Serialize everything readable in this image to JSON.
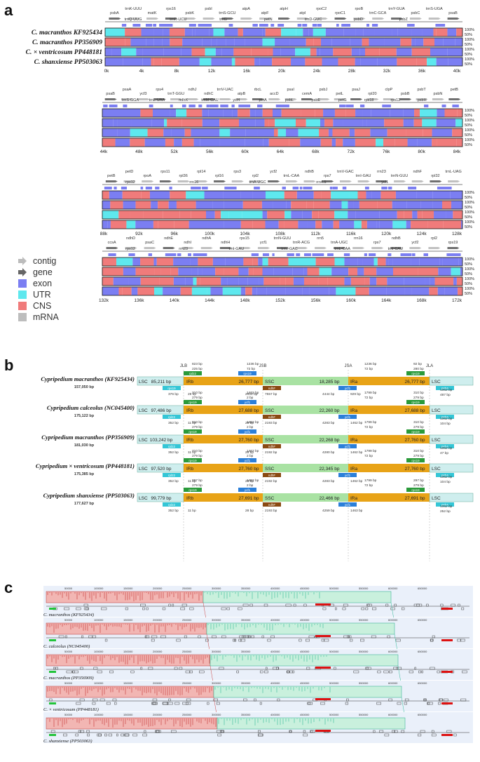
{
  "panel_labels": {
    "a": "a",
    "b": "b",
    "c": "c"
  },
  "colors": {
    "exon": "#7b7ef2",
    "utr": "#5ee8ee",
    "cns": "#f07b7b",
    "mrna": "#bdbdbd",
    "contig": "#c0c0c0",
    "gene": "#707070",
    "lsc": "#cfeeee",
    "irb": "#e8a317",
    "ssc": "#a9e2a3",
    "ira": "#e8a317"
  },
  "panel_a": {
    "sequence_labels": [
      "C. macranthos KF925434",
      "C. macranthos PP356909",
      "C. × ventricosum PP448181",
      "C. shanxiense PP503063"
    ],
    "pct_labels": [
      "100%",
      "50%"
    ],
    "legend": [
      {
        "label": "contig",
        "shape": "light-arrow-icon"
      },
      {
        "label": "gene",
        "shape": "dark-arrow-icon"
      },
      {
        "label": "exon",
        "shape": "exon-square"
      },
      {
        "label": "UTR",
        "shape": "utr-square"
      },
      {
        "label": "CNS",
        "shape": "cns-square"
      },
      {
        "label": "mRNA",
        "shape": "mrna-square"
      }
    ],
    "rows": [
      {
        "genes_top": [
          "psbA",
          "trnK-UUU",
          "matK",
          "rps16",
          "psbK",
          "psbI",
          "trnS-GCU",
          "atpA",
          "atpF",
          "atpH",
          "atpI",
          "rpoC2",
          "rpoC1",
          "rpoB",
          "trnC-GCA",
          "trnY-GUA",
          "psbC",
          "trnS-UGA",
          "psaB"
        ],
        "genes_bottom": [
          "trnQ-UUG",
          "trnR-UCU",
          "trnG",
          "petN",
          "trnD-GUC",
          "psbD",
          "psbZ"
        ],
        "ticks": [
          "0k",
          "4k",
          "8k",
          "12k",
          "16k",
          "20k",
          "24k",
          "28k",
          "32k",
          "36k",
          "40k"
        ]
      },
      {
        "genes_top": [
          "psaB",
          "psaA",
          "ycf3",
          "rps4",
          "trnT-GGU",
          "ndhJ",
          "ndhC",
          "trnV-UAC",
          "atpB",
          "rbcL",
          "accD",
          "psaI",
          "cemA",
          "psbJ",
          "petL",
          "psaJ",
          "rpl20",
          "clpP",
          "psbB",
          "psbT",
          "psbN",
          "petB"
        ],
        "genes_bottom": [
          "trnS-GGA",
          "trnL-UAA",
          "ndhK",
          "trnM-CAU",
          "ycf4",
          "petA",
          "psbL",
          "psbE",
          "petG",
          "rps18",
          "rps12",
          "psbH"
        ],
        "ticks": [
          "44k",
          "48k",
          "52k",
          "56k",
          "60k",
          "64k",
          "68k",
          "72k",
          "76k",
          "80k",
          "84k"
        ]
      },
      {
        "genes_top": [
          "petB",
          "petD",
          "rpoA",
          "rps11",
          "rpl36",
          "rpl14",
          "rpl16",
          "rps3",
          "rpl2",
          "ycf2",
          "trnL-CAA",
          "ndhB",
          "rps7",
          "trnV-GAC",
          "trnI-GAU",
          "rrn23",
          "trnN-GUU",
          "ndhF",
          "rpl32",
          "trnL-UAG"
        ],
        "genes_bottom": [
          "rps12",
          "rrn16",
          "trnA-UGC",
          "rrn4.5",
          "ycf1"
        ],
        "ticks": [
          "88k",
          "92k",
          "96k",
          "100k",
          "104k",
          "108k",
          "112k",
          "116k",
          "120k",
          "124k",
          "128k"
        ]
      },
      {
        "genes_top": [
          "ccsA",
          "ndhD",
          "psaC",
          "ndhE",
          "ndhI",
          "ndhA",
          "ndhH",
          "rps15",
          "ycf1",
          "trnN-GUU",
          "trnR-ACG",
          "rrn5",
          "trnA-UGC",
          "rrn16",
          "rps7",
          "ndhB",
          "ycf2",
          "rpl2",
          "rps19"
        ],
        "genes_bottom": [
          "rps12",
          "rrn23",
          "trnI-GAU",
          "trnV-GAC",
          "trnL-CAA",
          "trnI-CAU"
        ],
        "ticks": [
          "132k",
          "136k",
          "140k",
          "144k",
          "148k",
          "152k",
          "156k",
          "160k",
          "164k",
          "168k",
          "172k"
        ]
      }
    ]
  },
  "panel_b": {
    "junction_headers": [
      "JLB",
      "JSB",
      "JSA",
      "JLA"
    ],
    "region_labels": {
      "lsc": "LSC",
      "irb": "IRb",
      "ssc": "SSC",
      "ira": "IRa"
    },
    "genomes": [
      {
        "name": "Cypripedium macranthos",
        "acc": "(KF925434)",
        "total": "157,050 bp",
        "lsc": "85,211 bp",
        "irb": "26,777 bp",
        "ssc": "18,285 bp",
        "ira": "26,777 bp",
        "genes": [
          "rps19",
          "rpl22",
          "rps19",
          "ndhF",
          "ycf1",
          "rps19",
          "psbA"
        ],
        "notes": [
          "823 bp",
          "225 bp",
          "1236 bp",
          "72 bp",
          "376 bp",
          "29 bp",
          "2004 bp",
          "7557 bp",
          "4444 bp",
          "929 bp",
          "1236 bp",
          "72 bp",
          "92 bp",
          "280 bp",
          "1062 bp",
          "487 bp"
        ]
      },
      {
        "name": "Cypripedium calceolus",
        "acc": "(NC045400)",
        "total": "175,122 bp",
        "lsc": "97,486 bp",
        "irb": "27,688 bp",
        "ssc": "22,260 bp",
        "ira": "27,688 bp",
        "genes": [
          "rpl22",
          "rps19",
          "ycf1",
          "ndhF",
          "ycf1",
          "rps19",
          "psbA"
        ],
        "notes": [
          "310 bp",
          "279 bp",
          "1462 bp",
          "2 bp",
          "352 bp",
          "11 bp",
          "28 bp",
          "2193 bp",
          "4283 bp",
          "1462 bp",
          "1799 bp",
          "72 bp",
          "310 bp",
          "279 bp",
          "1062 bp",
          "104 bp"
        ]
      },
      {
        "name": "Cypripedium macranthos",
        "acc": "(PP356909)",
        "total": "181,030 bp",
        "lsc": "103,242 bp",
        "irb": "27,760 bp",
        "ssc": "22,268 bp",
        "ira": "27,760 bp",
        "genes": [
          "rpl22",
          "rps19",
          "ycf1",
          "ndhF",
          "ycf1",
          "rps19",
          "psbA"
        ],
        "notes": [
          "310 bp",
          "279 bp",
          "1462 bp",
          "2 bp",
          "352 bp",
          "11 bp",
          "28 bp",
          "2192 bp",
          "4280 bp",
          "1462 bp",
          "1799 bp",
          "72 bp",
          "310 bp",
          "279 bp",
          "1062 bp",
          "47 bp"
        ]
      },
      {
        "name": "Cypripedium × ventricosum",
        "acc": "(PP448181)",
        "total": "175,385 bp",
        "lsc": "97,520 bp",
        "irb": "27,760 bp",
        "ssc": "22,345 bp",
        "ira": "27,760 bp",
        "genes": [
          "rpl22",
          "rps19",
          "ycf1",
          "ndhF",
          "ycf1",
          "rps19",
          "psbA"
        ],
        "notes": [
          "310 bp",
          "279 bp",
          "1462 bp",
          "2 bp",
          "352 bp",
          "11 bp",
          "28 bp",
          "2192 bp",
          "4283 bp",
          "1462 bp",
          "1799 bp",
          "72 bp",
          "310 bp",
          "279 bp",
          "1062 bp",
          "104 bp"
        ]
      },
      {
        "name": "Cypripedium shanxiense",
        "acc": "(PP503063)",
        "total": "177,627 bp",
        "lsc": "99,779 bp",
        "irb": "27,691 bp",
        "ssc": "22,466 bp",
        "ira": "27,691 bp",
        "genes": [
          "rpl22",
          "rps19",
          "ycf1",
          "ndhF",
          "ycf1",
          "rps19",
          "psbA"
        ],
        "notes": [
          "297 bp",
          "279 bp",
          "1462 bp",
          "2 bp",
          "352 bp",
          "11 bp",
          "28 bp",
          "2193 bp",
          "4259 bp",
          "1463 bp",
          "1799 bp",
          "72 bp",
          "297 bp",
          "279 bp",
          "1062 bp",
          "252 bp"
        ]
      }
    ]
  },
  "panel_c": {
    "genomes": [
      {
        "name": "C. macranthos",
        "acc": "(KF925434)"
      },
      {
        "name": "C. calceolus",
        "acc": "(NC045400)"
      },
      {
        "name": "C. macranthos",
        "acc": "(PP356909)"
      },
      {
        "name": "C. × ventricosum",
        "acc": "(PP448181)"
      },
      {
        "name": "C. shanxiense",
        "acc": "(PP503063)"
      }
    ],
    "ticks": [
      "50000",
      "100000",
      "150000",
      "200000",
      "250000",
      "300000",
      "350000",
      "400000",
      "450000",
      "500000",
      "550000",
      "600000",
      "650000",
      "700000",
      "750000"
    ]
  }
}
